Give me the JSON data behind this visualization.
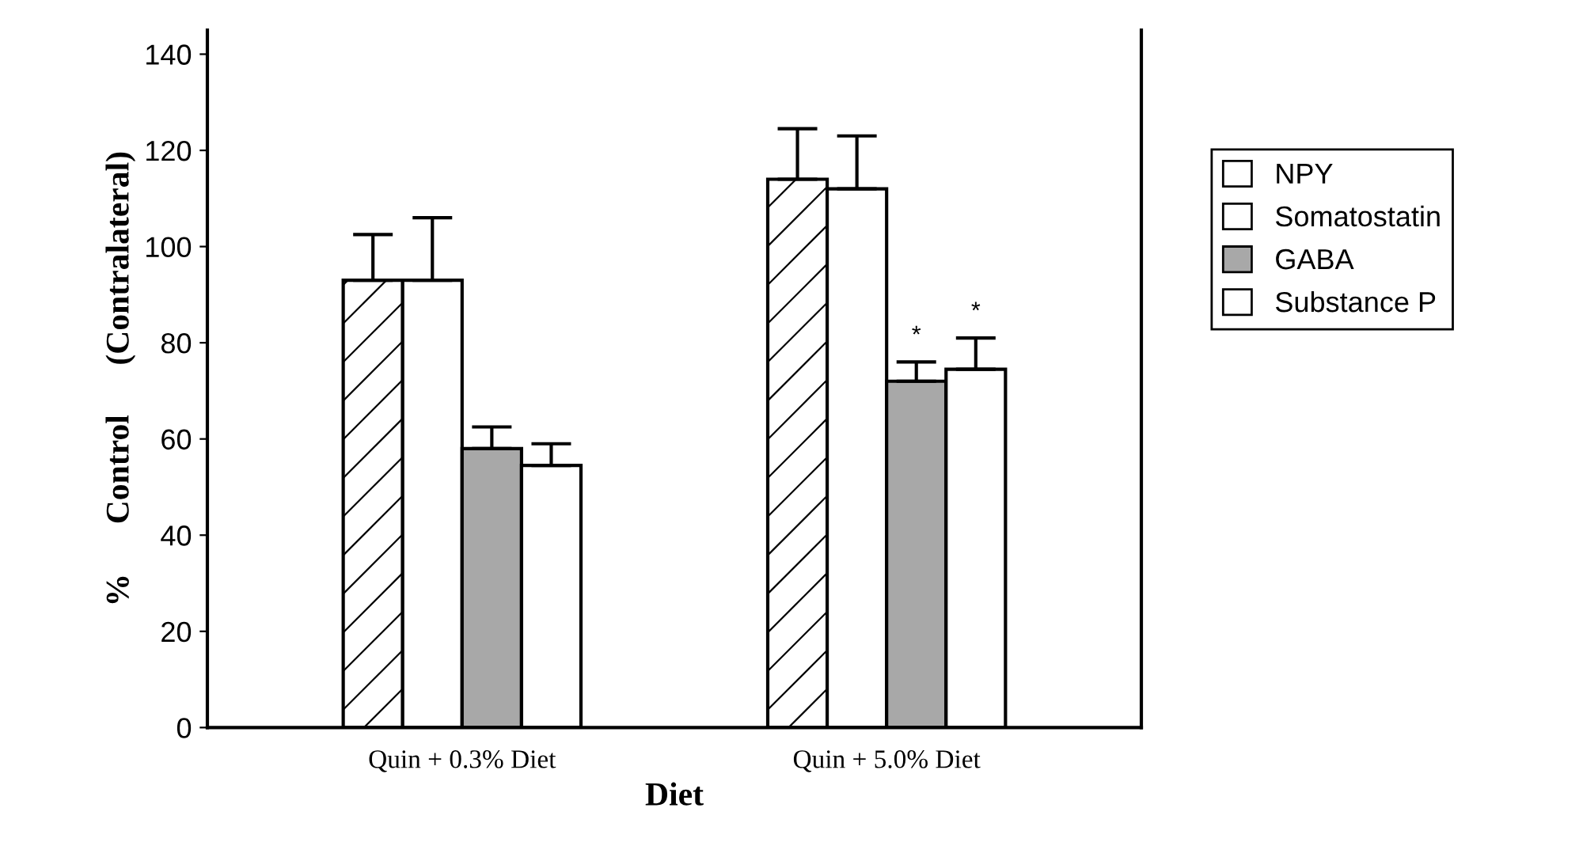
{
  "chart_data": {
    "type": "bar",
    "xlabel": "Diet",
    "ylabel": "%      Control      (Contralateral)",
    "categories": [
      "Quin + 0.3% Diet",
      "Quin + 5.0% Diet"
    ],
    "series": [
      {
        "name": "NPY",
        "color": "#ffffff",
        "values": [
          93,
          114
        ],
        "errors": [
          [
            93,
            102.5
          ],
          [
            114,
            124.5
          ]
        ]
      },
      {
        "name": "Somatostatin",
        "color": "#ffffff",
        "values": [
          93,
          112
        ],
        "errors": [
          [
            93,
            106
          ],
          [
            112,
            123
          ]
        ]
      },
      {
        "name": "GABA",
        "color": "#a8a8a8",
        "values": [
          58,
          72
        ],
        "errors": [
          [
            58,
            62.5
          ],
          [
            72,
            76
          ]
        ],
        "value_labels": [
          null,
          "*"
        ]
      },
      {
        "name": "Substance P",
        "color": "#ffffff",
        "values": [
          54.5,
          74.5
        ],
        "errors": [
          [
            54.5,
            59
          ],
          [
            74.5,
            81
          ]
        ],
        "value_labels": [
          null,
          "*"
        ]
      }
    ],
    "ylim": [
      0,
      145
    ],
    "yticks": [
      0,
      20,
      40,
      60,
      80,
      100,
      120,
      140
    ],
    "grid": false,
    "legend": "right"
  }
}
